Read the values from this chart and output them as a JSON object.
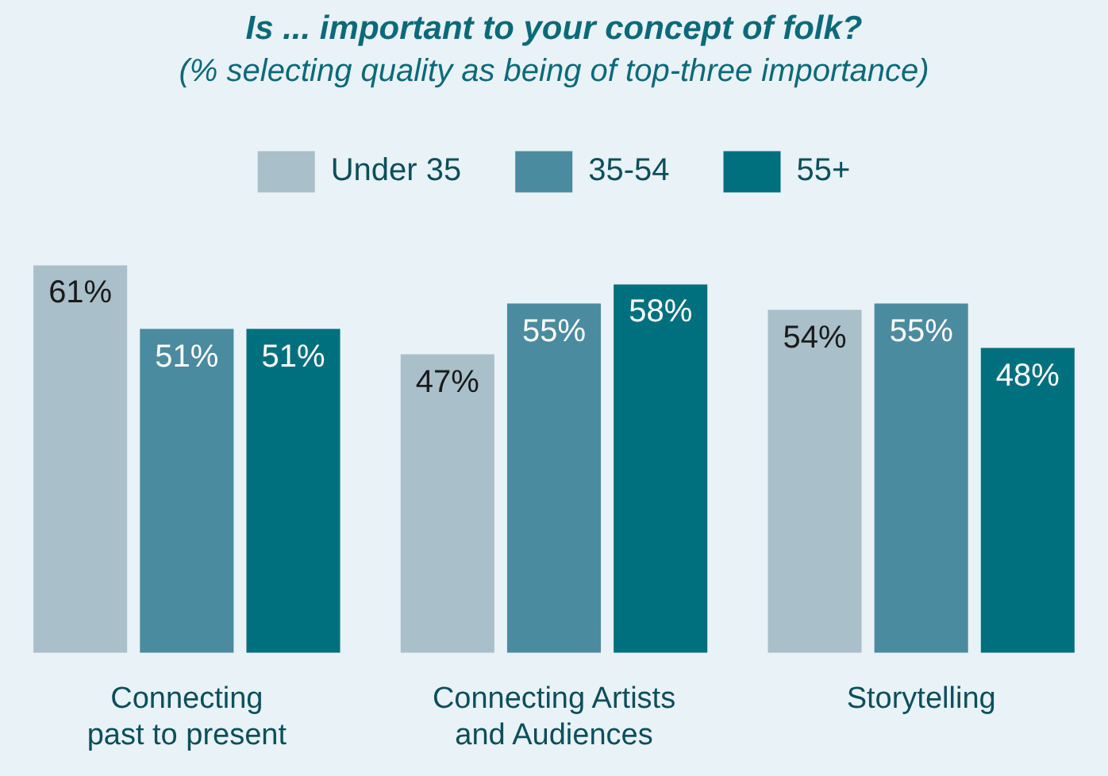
{
  "chart_data": {
    "type": "bar",
    "title": "Is ... important to your concept of folk?",
    "subtitle": "(% selecting quality as being of top-three importance)",
    "categories": [
      "Connecting past to present",
      "Connecting Artists and Audiences",
      "Storytelling"
    ],
    "series": [
      {
        "name": "Under 35",
        "color": "#a9bfc9",
        "values": [
          61,
          47,
          54
        ],
        "value_labels": [
          "61%",
          "47%",
          "54%"
        ]
      },
      {
        "name": "35-54",
        "color": "#4a8ba0",
        "values": [
          51,
          55,
          55
        ],
        "value_labels": [
          "51%",
          "55%",
          "55%"
        ]
      },
      {
        "name": "55+",
        "color": "#00707f",
        "values": [
          51,
          58,
          48
        ],
        "value_labels": [
          "51%",
          "58%",
          "48%"
        ]
      }
    ],
    "legend": "top",
    "grid": false
  }
}
